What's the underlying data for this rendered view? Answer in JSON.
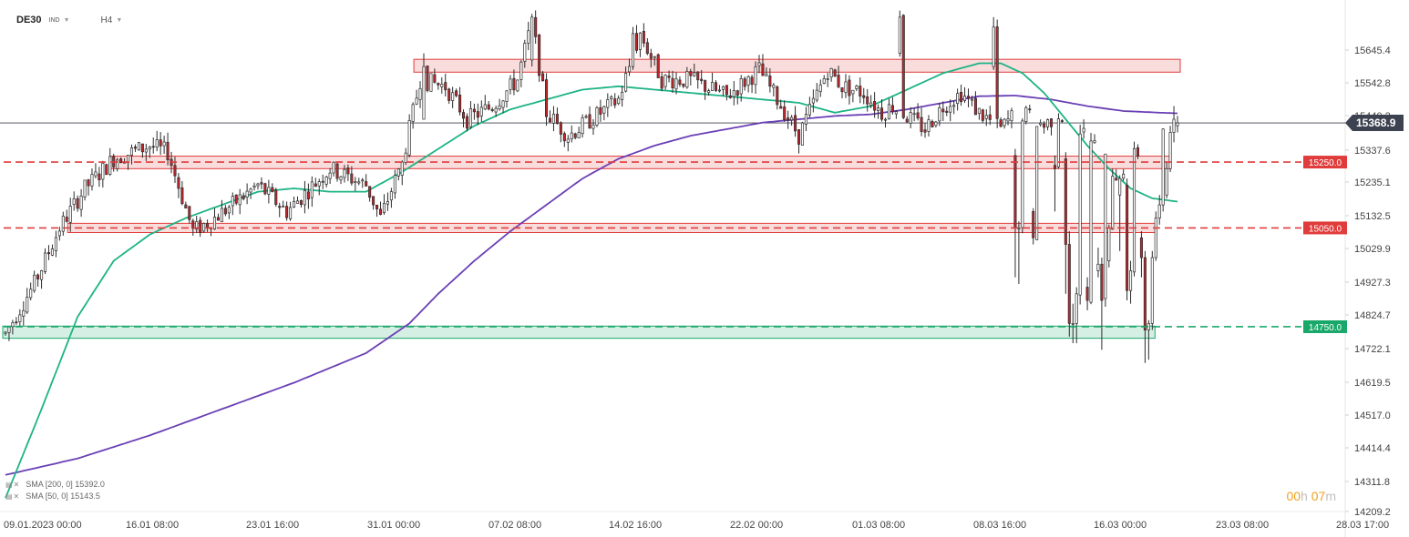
{
  "header": {
    "symbol": "DE30",
    "symbol_type": "IND",
    "timeframe": "H4"
  },
  "legend": [
    {
      "label": "SMA  [200,  0]  15392.0"
    },
    {
      "label": "SMA  [50,  0]  15143.5"
    }
  ],
  "timer": {
    "hours": "00",
    "hours_unit": "h",
    "minutes": "07",
    "minutes_unit": "m"
  },
  "chart_data": {
    "type": "candlestick",
    "y_axis_ticks": [
      "15645.4",
      "15542.8",
      "15440.2",
      "15337.6",
      "15235.1",
      "15132.5",
      "15029.9",
      "14927.3",
      "14824.7",
      "14722.1",
      "14619.5",
      "14517.0",
      "14414.4",
      "14311.8",
      "14209.2"
    ],
    "x_axis_ticks": [
      "09.01.2023  00:00",
      "16.01  08:00",
      "23.01  16:00",
      "31.01  00:00",
      "07.02  08:00",
      "14.02  16:00",
      "22.02  00:00",
      "01.03  08:00",
      "08.03  16:00",
      "16.03  00:00",
      "23.03  08:00",
      "28.03  17:00"
    ],
    "ylim": [
      14200,
      15720
    ],
    "current_price": {
      "value": 15368.9,
      "label": "15368.9",
      "color": "#3c4250"
    },
    "levels": [
      {
        "value": 15250.0,
        "label": "15250.0",
        "color": "#e03c3c"
      },
      {
        "value": 15050.0,
        "label": "15050.0",
        "color": "#e03c3c"
      },
      {
        "value": 14750.0,
        "label": "14750.0",
        "color": "#1aa86a"
      }
    ],
    "zones": [
      {
        "from_index": 114,
        "to_index": 325,
        "low": 15523,
        "high": 15562,
        "color": "#e03c3c"
      },
      {
        "from_index": 30,
        "to_index": 322,
        "low": 15230,
        "high": 15268,
        "color": "#e03c3c"
      },
      {
        "from_index": 18,
        "to_index": 318,
        "low": 15036,
        "high": 15064,
        "color": "#e03c3c"
      },
      {
        "from_index": 0,
        "to_index": 318,
        "low": 14715,
        "high": 14752,
        "color": "#1aa86a"
      }
    ],
    "series": [
      {
        "name": "SMA [200, 0]",
        "value": 15392.0,
        "color": "#6a3fb5"
      },
      {
        "name": "SMA [50, 0]",
        "value": 15143.5,
        "color": "#1db385"
      }
    ],
    "candle_colors": {
      "up": "#ffffff",
      "down": "#c0262c",
      "wick": "#2b2b2b"
    },
    "anchors": [
      [
        0,
        14730
      ],
      [
        8,
        14880
      ],
      [
        15,
        15050
      ],
      [
        22,
        15170
      ],
      [
        30,
        15260
      ],
      [
        40,
        15300
      ],
      [
        45,
        15280
      ],
      [
        52,
        15040
      ],
      [
        58,
        15080
      ],
      [
        70,
        15180
      ],
      [
        78,
        15100
      ],
      [
        90,
        15230
      ],
      [
        100,
        15180
      ],
      [
        104,
        15080
      ],
      [
        110,
        15250
      ],
      [
        115,
        15500
      ],
      [
        122,
        15480
      ],
      [
        128,
        15380
      ],
      [
        135,
        15420
      ],
      [
        142,
        15500
      ],
      [
        146,
        15680
      ],
      [
        150,
        15400
      ],
      [
        156,
        15330
      ],
      [
        160,
        15360
      ],
      [
        170,
        15440
      ],
      [
        176,
        15640
      ],
      [
        182,
        15500
      ],
      [
        190,
        15500
      ],
      [
        200,
        15450
      ],
      [
        209,
        15530
      ],
      [
        214,
        15440
      ],
      [
        220,
        15330
      ],
      [
        228,
        15530
      ],
      [
        232,
        15480
      ],
      [
        238,
        15460
      ],
      [
        243,
        15400
      ],
      [
        246,
        15420
      ],
      [
        255,
        15350
      ],
      [
        260,
        15420
      ],
      [
        265,
        15460
      ],
      [
        270,
        15400
      ],
      [
        276,
        15350
      ],
      [
        280,
        15400
      ],
      [
        284,
        15390
      ],
      [
        288,
        15360
      ],
      [
        292,
        15400
      ],
      [
        300,
        15330
      ],
      [
        308,
        15210
      ],
      [
        315,
        15290
      ],
      [
        320,
        15360
      ],
      [
        325,
        15368.9
      ]
    ],
    "overrides": {
      "110": [
        15210,
        15250,
        15180,
        15255
      ],
      "116": [
        15380,
        15540,
        15380,
        15580
      ],
      "146": [
        15560,
        15690,
        15540,
        15700
      ],
      "174": [
        15540,
        15640,
        15530,
        15660
      ],
      "248": [
        15580,
        15690,
        15570,
        15710
      ],
      "274": [
        15540,
        15660,
        15530,
        15690
      ],
      "280": [
        15270,
        15050,
        14900,
        15290
      ],
      "281": [
        15050,
        15050,
        14880,
        15070
      ],
      "285": [
        15100,
        15020,
        15000,
        15110
      ],
      "291": [
        15240,
        15230,
        15100,
        15270
      ],
      "294": [
        15260,
        15000,
        14850,
        15280
      ],
      "295": [
        15000,
        14760,
        14720,
        15040
      ],
      "296": [
        14760,
        14760,
        14700,
        14820
      ],
      "297": [
        14760,
        14850,
        14700,
        14870
      ],
      "300": [
        14870,
        14830,
        14800,
        14900
      ],
      "303": [
        14920,
        14940,
        14900,
        14990
      ],
      "304": [
        14940,
        14830,
        14680,
        14960
      ],
      "306": [
        14950,
        15050,
        14930,
        15060
      ],
      "309": [
        15150,
        15200,
        14980,
        15210
      ],
      "311": [
        15180,
        14860,
        14830,
        15200
      ],
      "312": [
        14860,
        14920,
        14820,
        14950
      ],
      "315": [
        15020,
        14960,
        14900,
        15040
      ],
      "316": [
        14960,
        14740,
        14640,
        14980
      ],
      "317": [
        14740,
        14760,
        14650,
        14770
      ],
      "318": [
        14760,
        14960,
        14740,
        14980
      ],
      "319": [
        14960,
        15080,
        14950,
        15100
      ],
      "320": [
        15080,
        15120,
        15060,
        15150
      ],
      "322": [
        15150,
        15230,
        15140,
        15250
      ],
      "323": [
        15230,
        15340,
        15220,
        15360
      ],
      "324": [
        15340,
        15380,
        15310,
        15420
      ],
      "325": [
        15360,
        15368.9,
        15340,
        15390
      ]
    },
    "sma200": [
      [
        0,
        14300
      ],
      [
        20,
        14350
      ],
      [
        40,
        14420
      ],
      [
        60,
        14500
      ],
      [
        80,
        14580
      ],
      [
        100,
        14670
      ],
      [
        112,
        14760
      ],
      [
        120,
        14850
      ],
      [
        130,
        14950
      ],
      [
        140,
        15040
      ],
      [
        150,
        15120
      ],
      [
        160,
        15200
      ],
      [
        170,
        15260
      ],
      [
        180,
        15300
      ],
      [
        190,
        15330
      ],
      [
        200,
        15350
      ],
      [
        210,
        15370
      ],
      [
        220,
        15380
      ],
      [
        230,
        15390
      ],
      [
        240,
        15395
      ],
      [
        250,
        15410
      ],
      [
        260,
        15430
      ],
      [
        270,
        15450
      ],
      [
        280,
        15452
      ],
      [
        290,
        15440
      ],
      [
        300,
        15420
      ],
      [
        310,
        15405
      ],
      [
        320,
        15400
      ],
      [
        325,
        15398
      ]
    ],
    "sma50": [
      [
        0,
        14230
      ],
      [
        10,
        14500
      ],
      [
        20,
        14780
      ],
      [
        30,
        14950
      ],
      [
        40,
        15030
      ],
      [
        50,
        15080
      ],
      [
        60,
        15120
      ],
      [
        70,
        15160
      ],
      [
        80,
        15170
      ],
      [
        90,
        15160
      ],
      [
        100,
        15160
      ],
      [
        110,
        15220
      ],
      [
        120,
        15290
      ],
      [
        130,
        15360
      ],
      [
        140,
        15410
      ],
      [
        150,
        15440
      ],
      [
        160,
        15470
      ],
      [
        170,
        15480
      ],
      [
        180,
        15470
      ],
      [
        190,
        15460
      ],
      [
        200,
        15450
      ],
      [
        210,
        15440
      ],
      [
        220,
        15430
      ],
      [
        230,
        15400
      ],
      [
        240,
        15420
      ],
      [
        250,
        15470
      ],
      [
        260,
        15520
      ],
      [
        270,
        15550
      ],
      [
        276,
        15550
      ],
      [
        282,
        15520
      ],
      [
        288,
        15460
      ],
      [
        294,
        15380
      ],
      [
        300,
        15300
      ],
      [
        306,
        15230
      ],
      [
        312,
        15170
      ],
      [
        318,
        15140
      ],
      [
        325,
        15130
      ]
    ]
  }
}
